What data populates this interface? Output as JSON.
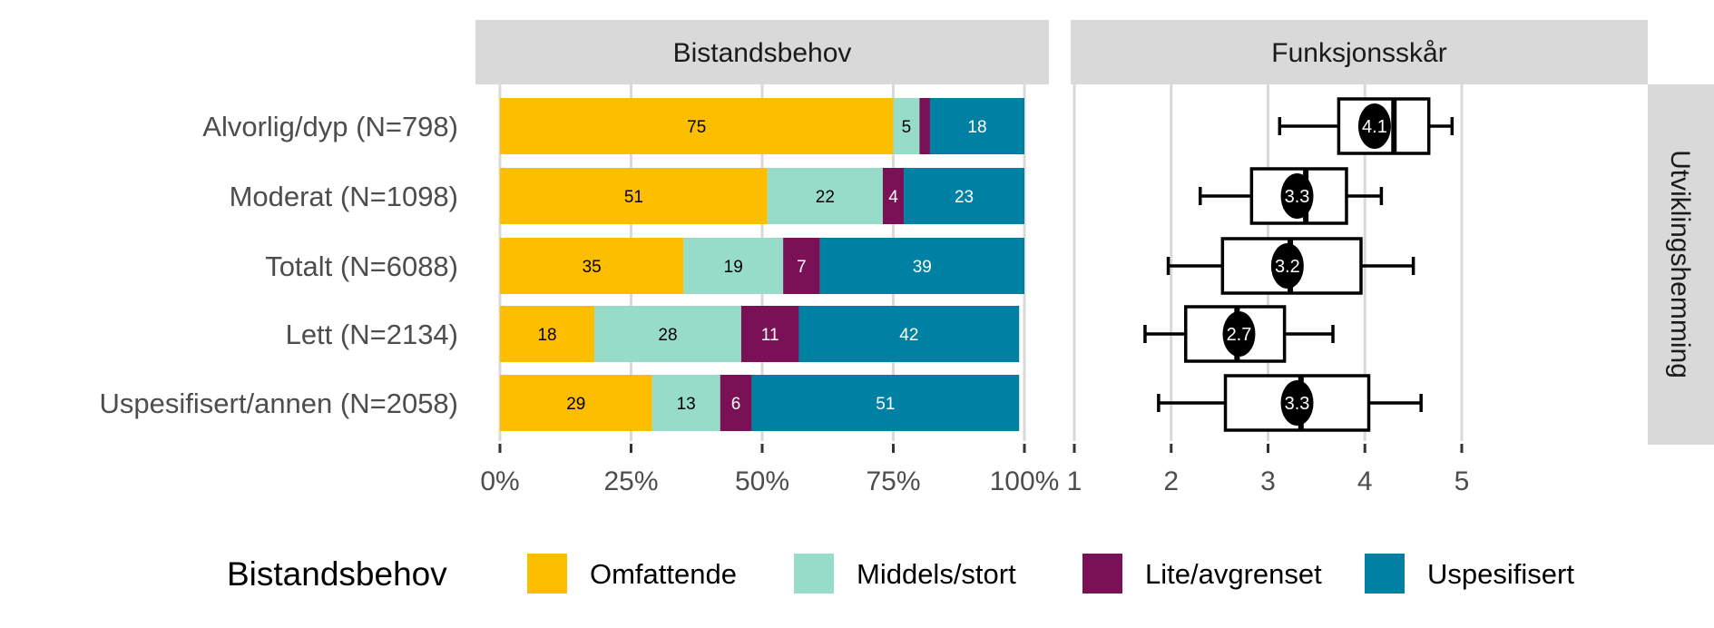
{
  "chart_data": [
    {
      "type": "bar",
      "orientation": "horizontal",
      "stacked": true,
      "facet_title": "Bistandsbehov",
      "categories": [
        "Alvorlig/dyp (N=798)",
        "Moderat (N=1098)",
        "Totalt (N=6088)",
        "Lett (N=2134)",
        "Uspesifisert/annen (N=2058)"
      ],
      "series": [
        {
          "name": "Omfattende",
          "color": "#FDBE00",
          "label_color": "#000000",
          "values": [
            75,
            51,
            35,
            18,
            29
          ]
        },
        {
          "name": "Middels/stort",
          "color": "#96DCC8",
          "label_color": "#000000",
          "values": [
            5,
            22,
            19,
            28,
            13
          ]
        },
        {
          "name": "Lite/avgrenset",
          "color": "#7A1157",
          "label_color": "#FFFFFF",
          "values": [
            2,
            4,
            7,
            11,
            6
          ]
        },
        {
          "name": "Uspesifisert",
          "color": "#0080A3",
          "label_color": "#FFFFFF",
          "values": [
            18,
            23,
            39,
            42,
            51
          ]
        }
      ],
      "xlim": [
        0,
        100
      ],
      "xticks": [
        "0%",
        "25%",
        "50%",
        "75%",
        "100%"
      ],
      "grid": true
    },
    {
      "type": "boxplot",
      "orientation": "horizontal",
      "facet_title": "Funksjonsskår",
      "categories": [
        "Alvorlig/dyp (N=798)",
        "Moderat (N=1098)",
        "Totalt (N=6088)",
        "Lett (N=2134)",
        "Uspesifisert/annen (N=2058)"
      ],
      "boxes": [
        {
          "low": 3.12,
          "q1": 3.73,
          "median": 4.3,
          "q3": 4.66,
          "high": 4.9,
          "mean": 4.1,
          "mean_label": "4.1"
        },
        {
          "low": 2.3,
          "q1": 2.83,
          "median": 3.39,
          "q3": 3.81,
          "high": 4.17,
          "mean": 3.3,
          "mean_label": "3.3"
        },
        {
          "low": 1.97,
          "q1": 2.53,
          "median": 3.23,
          "q3": 3.96,
          "high": 4.5,
          "mean": 3.2,
          "mean_label": "3.2"
        },
        {
          "low": 1.73,
          "q1": 2.15,
          "median": 2.68,
          "q3": 3.17,
          "high": 3.67,
          "mean": 2.7,
          "mean_label": "2.7"
        },
        {
          "low": 1.87,
          "q1": 2.56,
          "median": 3.34,
          "q3": 4.04,
          "high": 4.58,
          "mean": 3.3,
          "mean_label": "3.3"
        }
      ],
      "xlim": [
        1,
        5
      ],
      "xticks": [
        "1",
        "2",
        "3",
        "4",
        "5"
      ],
      "grid": true
    }
  ],
  "row_strip": "Utviklingshemming",
  "legend": {
    "title": "Bistandsbehov",
    "placement": "bottom",
    "items": [
      "Omfattende",
      "Middels/stort",
      "Lite/avgrenset",
      "Uspesifisert"
    ]
  }
}
